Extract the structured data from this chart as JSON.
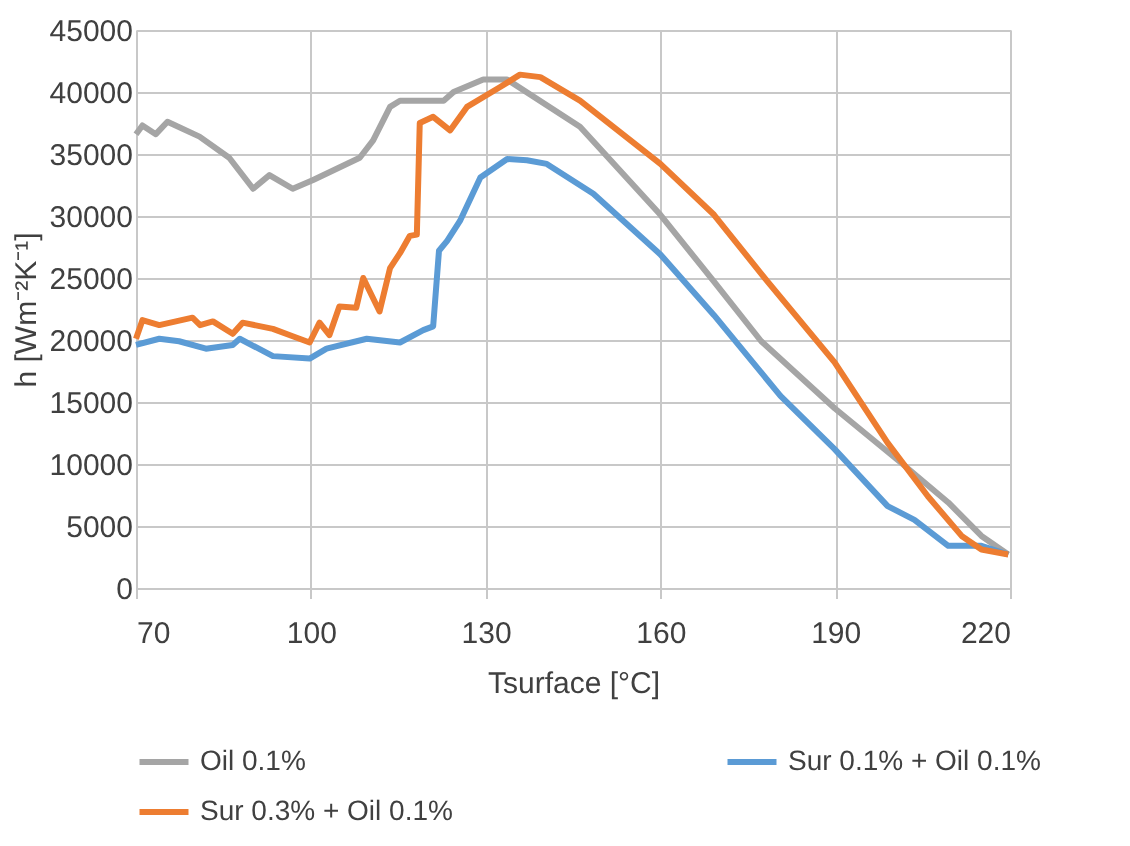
{
  "chart_data": {
    "type": "line",
    "xlabel": "Tsurface [°C]",
    "ylabel": "h [Wm⁻²K⁻¹]",
    "xlim": [
      70,
      220
    ],
    "xticks": [
      70,
      100,
      130,
      160,
      190,
      220
    ],
    "ylim": [
      0,
      45000
    ],
    "yticks": [
      0,
      5000,
      10000,
      15000,
      20000,
      25000,
      30000,
      35000,
      40000,
      45000
    ],
    "grid": true,
    "legend": "bottom",
    "marker": "none",
    "line_style": "solid",
    "series": [
      {
        "name": "Oil 0.1%",
        "color": "#a5a5a5",
        "x": [
          70,
          71.1,
          73.4,
          75.4,
          80.9,
          86,
          90.1,
          92.9,
          96.9,
          100.4,
          108.4,
          110.7,
          113.6,
          115.3,
          122.8,
          124.5,
          129.6,
          133.7,
          146.2,
          160,
          169.2,
          177.3,
          189.9,
          201.3,
          209.4,
          215.1,
          219.7
        ],
        "values": [
          36600,
          37300,
          36600,
          37600,
          36400,
          34700,
          32200,
          33300,
          32200,
          32900,
          34700,
          36100,
          38800,
          39300,
          39300,
          40000,
          41000,
          41000,
          37200,
          30100,
          24700,
          19900,
          14500,
          10100,
          6900,
          4200,
          2700
        ]
      },
      {
        "name": "Sur 0.1% + Oil 0.1%",
        "color": "#5b9bd5",
        "x": [
          70,
          74,
          77.4,
          82,
          86.6,
          87.8,
          93.5,
          99.8,
          102.7,
          109.6,
          115.3,
          119.3,
          121,
          122,
          123.4,
          125.6,
          129.1,
          133.7,
          137.1,
          140.5,
          148.5,
          160,
          169.2,
          180.6,
          189.9,
          199,
          203.6,
          209.4,
          215.1,
          219.7
        ],
        "values": [
          19600,
          20100,
          19900,
          19300,
          19600,
          20100,
          18700,
          18500,
          19300,
          20100,
          19800,
          20800,
          21100,
          27200,
          28000,
          29600,
          33100,
          34600,
          34500,
          34200,
          31800,
          26900,
          22000,
          15500,
          11200,
          6600,
          5500,
          3400,
          3400,
          2700
        ]
      },
      {
        "name": "Sur 0.3% + Oil 0.1%",
        "color": "#ed7d31",
        "x": [
          70,
          71.1,
          74,
          79.7,
          81,
          83.2,
          86.6,
          88.3,
          93.5,
          96.9,
          99.8,
          101.5,
          103.2,
          104.9,
          107.8,
          109,
          111.8,
          113.6,
          115.3,
          117,
          118.2,
          118.7,
          121,
          123.9,
          126.8,
          132.5,
          135.9,
          139.4,
          146.2,
          160,
          169.2,
          178.4,
          189.9,
          199,
          205.9,
          211.7,
          215.1,
          219.7
        ],
        "values": [
          20100,
          21600,
          21200,
          21800,
          21200,
          21500,
          20500,
          21400,
          20900,
          20300,
          19800,
          21400,
          20400,
          22700,
          22600,
          25000,
          22300,
          25800,
          27000,
          28400,
          28500,
          37500,
          38000,
          36900,
          38800,
          40400,
          41400,
          41200,
          39300,
          34200,
          30100,
          24700,
          18200,
          11700,
          7400,
          4200,
          3100,
          2700
        ]
      }
    ]
  }
}
